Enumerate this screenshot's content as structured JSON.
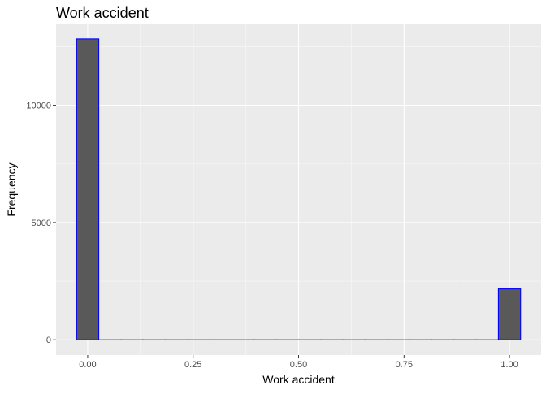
{
  "chart_data": {
    "type": "bar",
    "subtype": "histogram",
    "title": "Work accident",
    "xlabel": "Work accident",
    "ylabel": "Frequency",
    "xlim": [
      -0.075,
      1.075
    ],
    "ylim": [
      -650,
      13450
    ],
    "x_ticks": [
      {
        "value": 0,
        "label": "0.00"
      },
      {
        "value": 0.25,
        "label": "0.25"
      },
      {
        "value": 0.5,
        "label": "0.50"
      },
      {
        "value": 0.75,
        "label": "0.75"
      },
      {
        "value": 1,
        "label": "1.00"
      }
    ],
    "y_ticks": [
      {
        "value": 0,
        "label": "0"
      },
      {
        "value": 5000,
        "label": "5000"
      },
      {
        "value": 10000,
        "label": "10000"
      }
    ],
    "bin_width": 0.0526,
    "bins": [
      {
        "x0": -0.0263,
        "x1": 0.0263,
        "count": 12830
      },
      {
        "x0": 0.0263,
        "x1": 0.0789,
        "count": 0
      },
      {
        "x0": 0.0789,
        "x1": 0.1316,
        "count": 0
      },
      {
        "x0": 0.1316,
        "x1": 0.1842,
        "count": 0
      },
      {
        "x0": 0.1842,
        "x1": 0.2368,
        "count": 0
      },
      {
        "x0": 0.2368,
        "x1": 0.2895,
        "count": 0
      },
      {
        "x0": 0.2895,
        "x1": 0.3421,
        "count": 0
      },
      {
        "x0": 0.3421,
        "x1": 0.3947,
        "count": 0
      },
      {
        "x0": 0.3947,
        "x1": 0.4474,
        "count": 0
      },
      {
        "x0": 0.4474,
        "x1": 0.5,
        "count": 0
      },
      {
        "x0": 0.5,
        "x1": 0.5526,
        "count": 0
      },
      {
        "x0": 0.5526,
        "x1": 0.6053,
        "count": 0
      },
      {
        "x0": 0.6053,
        "x1": 0.6579,
        "count": 0
      },
      {
        "x0": 0.6579,
        "x1": 0.7105,
        "count": 0
      },
      {
        "x0": 0.7105,
        "x1": 0.7632,
        "count": 0
      },
      {
        "x0": 0.7632,
        "x1": 0.8158,
        "count": 0
      },
      {
        "x0": 0.8158,
        "x1": 0.8684,
        "count": 0
      },
      {
        "x0": 0.8684,
        "x1": 0.9211,
        "count": 0
      },
      {
        "x0": 0.9211,
        "x1": 0.9737,
        "count": 0
      },
      {
        "x0": 0.9737,
        "x1": 1.0263,
        "count": 2170
      }
    ],
    "grid": true,
    "legend": "none",
    "colors": {
      "bar_fill": "#595959",
      "bar_outline": "#0000ff",
      "panel_background": "#ebebeb",
      "grid_major": "#ffffff"
    }
  }
}
